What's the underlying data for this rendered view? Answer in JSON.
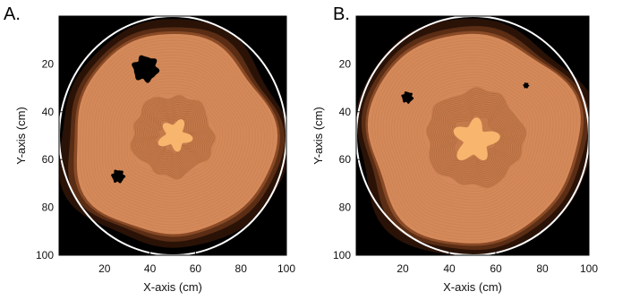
{
  "figure": {
    "panels": [
      "A.",
      "B."
    ]
  },
  "chart_data": [
    {
      "type": "heatmap",
      "panel_label": "A.",
      "xlabel": "X-axis (cm)",
      "ylabel": "Y-axis (cm)",
      "xlim": [
        0,
        100
      ],
      "ylim": [
        0,
        100
      ],
      "y_reversed": true,
      "x_ticks": [
        20,
        40,
        60,
        80,
        100
      ],
      "y_ticks": [
        20,
        40,
        60,
        80,
        100
      ],
      "colors": {
        "background": "#000000",
        "outer_band": "#2a1207",
        "mid_band": "#5a2d14",
        "main": "#d4895a",
        "inner": "#c57a4b",
        "core": "#f7b56e",
        "boundary": "#ffffff"
      },
      "boundary_circle": {
        "center": [
          50,
          50
        ],
        "radius": 50
      },
      "regions": {
        "main": {
          "center": [
            50,
            50
          ],
          "radius": 44
        },
        "inner": {
          "center": [
            50,
            50
          ],
          "radius": 18
        },
        "core": {
          "center": [
            51,
            50
          ],
          "radius": 6
        }
      },
      "holes": [
        {
          "center": [
            38,
            22
          ],
          "radius": 5.5
        },
        {
          "center": [
            26,
            67
          ],
          "radius": 2.8
        }
      ]
    },
    {
      "type": "heatmap",
      "panel_label": "B.",
      "xlabel": "X-axis (cm)",
      "ylabel": "Y-axis (cm)",
      "xlim": [
        0,
        100
      ],
      "ylim": [
        0,
        100
      ],
      "y_reversed": true,
      "x_ticks": [
        20,
        40,
        60,
        80,
        100
      ],
      "y_ticks": [
        20,
        40,
        60,
        80,
        100
      ],
      "colors": {
        "background": "#000000",
        "outer_band": "#2a1207",
        "mid_band": "#5a2d14",
        "main": "#d4895a",
        "inner": "#c57a4b",
        "core": "#f7b56e",
        "boundary": "#ffffff"
      },
      "boundary_circle": {
        "center": [
          50,
          50
        ],
        "radius": 50
      },
      "regions": {
        "main": {
          "center": [
            50,
            51
          ],
          "radius": 45
        },
        "inner": {
          "center": [
            51,
            51
          ],
          "radius": 21
        },
        "core": {
          "center": [
            51,
            52
          ],
          "radius": 8
        }
      },
      "holes": [
        {
          "center": [
            22,
            34
          ],
          "radius": 2.4
        },
        {
          "center": [
            73,
            29
          ],
          "radius": 1.2
        }
      ]
    }
  ]
}
